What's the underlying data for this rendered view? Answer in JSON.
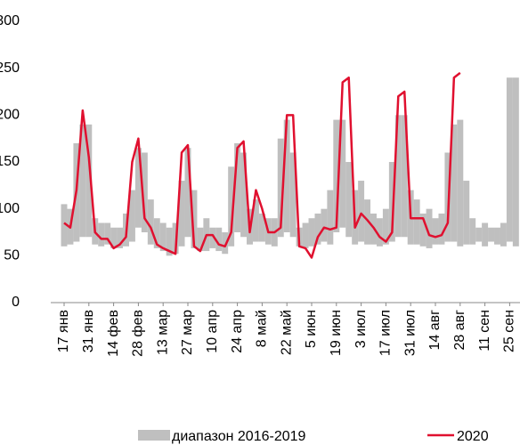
{
  "chart_data": {
    "type": "band-line",
    "categories": [
      "17 янв",
      null,
      null,
      null,
      "31 янв",
      null,
      null,
      null,
      "14 фев",
      null,
      null,
      null,
      "28 фев",
      null,
      null,
      null,
      "13 мар",
      null,
      null,
      null,
      "27 мар",
      null,
      null,
      null,
      "10 апр",
      null,
      null,
      null,
      "24 апр",
      null,
      null,
      null,
      "8 май",
      null,
      null,
      null,
      "22 май",
      null,
      null,
      null,
      "5 июн",
      null,
      null,
      null,
      "19 июн",
      null,
      null,
      null,
      "3 июл",
      null,
      null,
      null,
      "17 июл",
      null,
      null,
      null,
      "31 июл",
      null,
      null,
      null,
      "14 авг",
      null,
      null,
      null,
      "28 авг",
      null,
      null,
      null,
      "11 сен",
      null,
      null,
      null,
      "25 сен",
      null
    ],
    "series": [
      {
        "name": "диапазон 2016-2019",
        "color": "#bfbfbf",
        "low": [
          60,
          62,
          65,
          70,
          70,
          62,
          60,
          62,
          58,
          58,
          60,
          65,
          80,
          75,
          62,
          58,
          55,
          50,
          52,
          60,
          70,
          58,
          55,
          55,
          58,
          55,
          52,
          60,
          75,
          70,
          62,
          65,
          65,
          62,
          60,
          70,
          75,
          70,
          60,
          58,
          60,
          62,
          65,
          62,
          75,
          80,
          70,
          62,
          65,
          62,
          62,
          60,
          62,
          65,
          70,
          70,
          62,
          62,
          60,
          58,
          62,
          62,
          65,
          65,
          60,
          62,
          62,
          65,
          60,
          65,
          62,
          60,
          65,
          60
        ],
        "high": [
          105,
          100,
          170,
          190,
          190,
          90,
          85,
          85,
          80,
          80,
          95,
          120,
          165,
          160,
          110,
          90,
          85,
          80,
          85,
          130,
          165,
          120,
          80,
          90,
          80,
          80,
          75,
          145,
          170,
          160,
          100,
          110,
          95,
          90,
          90,
          175,
          195,
          160,
          80,
          85,
          90,
          95,
          100,
          120,
          195,
          195,
          150,
          120,
          130,
          110,
          95,
          90,
          100,
          150,
          200,
          200,
          120,
          110,
          95,
          100,
          90,
          95,
          160,
          190,
          195,
          130,
          90,
          80,
          85,
          80,
          80,
          85,
          240,
          240
        ]
      },
      {
        "name": "2020",
        "color": "#e0102f",
        "values": [
          85,
          80,
          120,
          205,
          155,
          75,
          68,
          68,
          58,
          62,
          70,
          150,
          175,
          90,
          80,
          62,
          58,
          55,
          52,
          160,
          168,
          60,
          55,
          72,
          72,
          62,
          60,
          75,
          165,
          172,
          75,
          120,
          100,
          75,
          75,
          80,
          200,
          200,
          60,
          58,
          48,
          70,
          80,
          78,
          80,
          235,
          240,
          80,
          95,
          88,
          80,
          70,
          65,
          75,
          220,
          225,
          90,
          90,
          90,
          72,
          70,
          72,
          85,
          240,
          245,
          null,
          null,
          null,
          null,
          null,
          null,
          null,
          null,
          null
        ]
      }
    ],
    "ylim": [
      0,
      300
    ],
    "yticks": [
      0,
      50,
      100,
      150,
      200,
      250,
      300
    ],
    "grid": false
  }
}
